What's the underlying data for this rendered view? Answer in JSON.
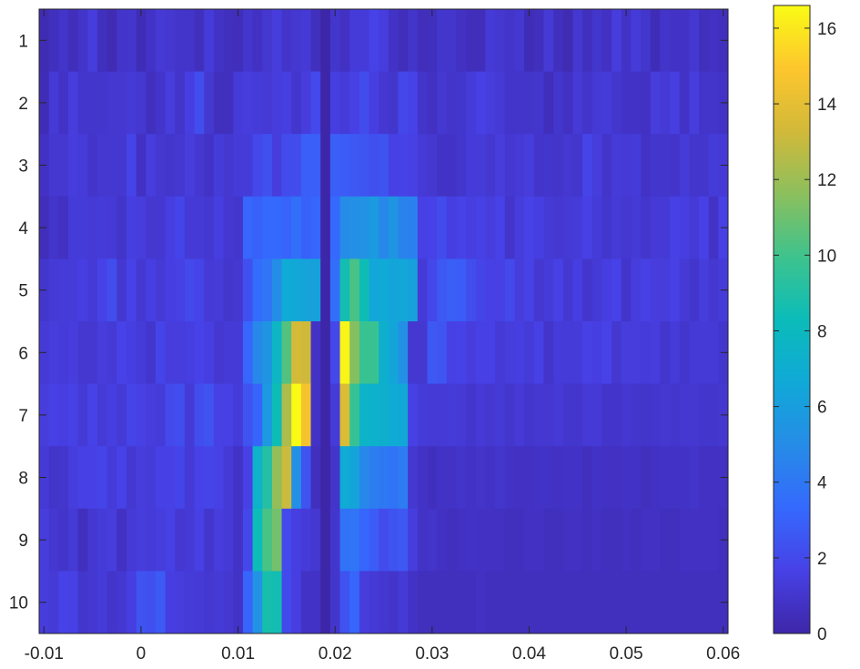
{
  "chart_data": {
    "type": "heatmap",
    "colormap": "parula",
    "x_range": [
      -0.0105,
      0.0605
    ],
    "y_range": [
      0.5,
      10.5
    ],
    "x_ticks": [
      -0.01,
      0,
      0.01,
      0.02,
      0.03,
      0.04,
      0.05,
      0.06
    ],
    "x_tick_labels": [
      "-0.01",
      "0",
      "0.01",
      "0.02",
      "0.03",
      "0.04",
      "0.05",
      "0.06"
    ],
    "y_ticks": [
      1,
      2,
      3,
      4,
      5,
      6,
      7,
      8,
      9,
      10
    ],
    "y_tick_labels": [
      "1",
      "2",
      "3",
      "4",
      "5",
      "6",
      "7",
      "8",
      "9",
      "10"
    ],
    "y_reversed": true,
    "colorbar": {
      "range": [
        0,
        16.6
      ],
      "ticks": [
        0,
        2,
        4,
        6,
        8,
        10,
        12,
        14,
        16
      ],
      "tick_labels": [
        "0",
        "2",
        "4",
        "6",
        "8",
        "10",
        "12",
        "14",
        "16"
      ],
      "position": "right"
    },
    "grid": false,
    "x_bins": [
      -0.01,
      -0.009,
      -0.008,
      -0.007,
      -0.006,
      -0.005,
      -0.004,
      -0.003,
      -0.002,
      -0.001,
      0.0,
      0.001,
      0.002,
      0.003,
      0.004,
      0.005,
      0.006,
      0.007,
      0.008,
      0.009,
      0.01,
      0.011,
      0.012,
      0.013,
      0.014,
      0.015,
      0.016,
      0.017,
      0.018,
      0.019,
      0.02,
      0.021,
      0.022,
      0.023,
      0.024,
      0.025,
      0.026,
      0.027,
      0.028,
      0.029,
      0.03,
      0.031,
      0.032,
      0.033,
      0.034,
      0.035,
      0.036,
      0.037,
      0.038,
      0.039,
      0.04,
      0.041,
      0.042,
      0.043,
      0.044,
      0.045,
      0.046,
      0.047,
      0.048,
      0.049,
      0.05,
      0.051,
      0.052,
      0.053,
      0.054,
      0.055,
      0.056,
      0.057,
      0.058,
      0.059,
      0.06
    ],
    "rows": [
      [
        0.3,
        0.6,
        0.9,
        0.5,
        0.9,
        1.4,
        0.6,
        0.3,
        0.9,
        1.0,
        0.4,
        0.8,
        1.2,
        1.1,
        0.9,
        0.9,
        0.6,
        1.3,
        0.8,
        0.6,
        0.5,
        1.0,
        0.7,
        1.1,
        1.4,
        0.9,
        1.1,
        1.2,
        0.6,
        0.0,
        1.0,
        0.7,
        1.3,
        1.3,
        1.7,
        1.4,
        0.8,
        0.5,
        0.9,
        0.5,
        0.6,
        1.0,
        1.0,
        0.7,
        0.5,
        0.5,
        1.2,
        1.1,
        0.9,
        1.1,
        0.4,
        0.6,
        1.2,
        0.6,
        0.3,
        1.1,
        0.6,
        1.0,
        0.7,
        1.4,
        0.8,
        1.3,
        1.0,
        0.4,
        0.9,
        0.8,
        0.8,
        1.1,
        0.6,
        0.7,
        0.6
      ],
      [
        0.4,
        1.2,
        0.8,
        1.4,
        1.0,
        1.0,
        1.0,
        1.1,
        1.1,
        1.2,
        1.1,
        0.6,
        0.9,
        1.4,
        0.9,
        1.5,
        2.2,
        1.1,
        0.6,
        0.6,
        1.3,
        1.4,
        1.3,
        1.2,
        1.4,
        1.5,
        1.0,
        1.4,
        2.0,
        0.0,
        1.5,
        1.3,
        1.6,
        2.1,
        1.5,
        1.1,
        1.0,
        1.9,
        1.7,
        0.9,
        0.7,
        1.1,
        0.9,
        1.0,
        1.3,
        1.6,
        1.4,
        1.2,
        0.9,
        0.9,
        0.9,
        1.0,
        0.5,
        1.0,
        0.7,
        1.2,
        0.9,
        1.2,
        1.3,
        1.0,
        0.8,
        0.8,
        0.7,
        1.4,
        1.2,
        1.5,
        0.8,
        1.4,
        0.9,
        0.9,
        0.8
      ],
      [
        0.7,
        1.1,
        1.1,
        1.4,
        1.3,
        0.9,
        1.1,
        1.1,
        1.1,
        1.8,
        0.7,
        1.4,
        1.1,
        1.0,
        1.1,
        1.4,
        1.1,
        0.8,
        1.3,
        1.1,
        1.3,
        1.3,
        1.9,
        2.3,
        1.4,
        2.1,
        2.1,
        2.9,
        2.9,
        0.0,
        2.9,
        2.8,
        2.6,
        2.5,
        2.3,
        2.4,
        1.6,
        1.7,
        1.6,
        1.2,
        1.1,
        0.8,
        0.8,
        1.0,
        1.3,
        1.3,
        1.1,
        1.4,
        1.1,
        1.2,
        1.4,
        0.9,
        1.0,
        0.9,
        1.1,
        1.0,
        1.8,
        1.4,
        0.9,
        1.3,
        1.2,
        1.3,
        0.8,
        1.0,
        1.0,
        0.9,
        1.3,
        1.0,
        1.0,
        1.3,
        1.2
      ],
      [
        0.5,
        0.9,
        0.7,
        1.3,
        1.3,
        1.2,
        1.3,
        1.2,
        0.9,
        1.5,
        1.4,
        1.1,
        1.1,
        1.5,
        1.8,
        1.2,
        1.2,
        1.1,
        1.5,
        1.1,
        1.0,
        3.2,
        3.0,
        3.3,
        3.3,
        3.1,
        3.6,
        3.0,
        3.2,
        0.0,
        3.3,
        5.0,
        5.2,
        5.3,
        5.8,
        4.8,
        5.5,
        4.5,
        4.4,
        1.6,
        1.7,
        2.1,
        1.5,
        1.7,
        1.5,
        1.6,
        1.4,
        1.7,
        0.9,
        1.4,
        1.7,
        1.5,
        1.2,
        1.1,
        1.2,
        1.3,
        1.6,
        1.3,
        1.0,
        1.2,
        1.1,
        1.2,
        1.0,
        1.2,
        1.2,
        1.6,
        1.5,
        1.2,
        1.6,
        0.8,
        1.6
      ],
      [
        1.0,
        1.2,
        1.3,
        1.3,
        1.5,
        1.2,
        1.7,
        2.2,
        1.1,
        1.7,
        1.1,
        1.5,
        1.2,
        1.5,
        1.6,
        2.0,
        1.8,
        1.2,
        1.3,
        1.0,
        1.1,
        2.3,
        3.5,
        3.9,
        5.1,
        6.8,
        6.6,
        6.3,
        6.2,
        0.0,
        3.6,
        8.6,
        10.2,
        8.4,
        6.5,
        6.7,
        6.4,
        6.5,
        6.1,
        1.2,
        1.9,
        2.6,
        2.9,
        2.8,
        2.2,
        1.8,
        1.6,
        1.6,
        2.0,
        1.4,
        1.7,
        1.1,
        1.3,
        1.6,
        1.1,
        1.5,
        1.0,
        1.2,
        1.5,
        1.7,
        0.9,
        1.4,
        1.6,
        1.4,
        1.4,
        1.6,
        1.2,
        1.0,
        1.4,
        1.1,
        1.3
      ],
      [
        1.2,
        1.4,
        1.3,
        1.4,
        1.1,
        1.1,
        1.4,
        1.2,
        1.7,
        1.5,
        1.3,
        1.0,
        1.8,
        1.4,
        1.4,
        1.5,
        1.7,
        1.5,
        1.1,
        1.2,
        1.2,
        3.2,
        4.8,
        5.5,
        7.8,
        10.4,
        13.4,
        13.2,
        0.8,
        0.0,
        1.9,
        16.4,
        11.5,
        9.8,
        9.8,
        7.2,
        6.4,
        5.2,
        1.1,
        1.1,
        2.6,
        2.5,
        1.6,
        1.7,
        1.4,
        1.6,
        1.6,
        1.2,
        1.4,
        1.5,
        1.3,
        1.6,
        0.9,
        1.3,
        1.3,
        1.3,
        1.6,
        1.5,
        1.7,
        1.1,
        1.4,
        1.4,
        1.3,
        1.4,
        1.0,
        1.3,
        1.0,
        1.2,
        1.2,
        1.2,
        1.0
      ],
      [
        1.4,
        1.6,
        1.5,
        1.6,
        1.2,
        1.7,
        1.2,
        1.5,
        1.2,
        1.8,
        1.6,
        1.4,
        1.3,
        2.0,
        2.2,
        1.2,
        2.2,
        2.4,
        1.6,
        1.6,
        1.3,
        2.4,
        3.1,
        5.7,
        8.4,
        12.4,
        16.6,
        14.6,
        0.8,
        0.0,
        1.3,
        13.6,
        9.7,
        7.5,
        7.3,
        7.2,
        6.8,
        6.6,
        1.6,
        1.3,
        1.2,
        1.2,
        1.3,
        1.2,
        1.0,
        1.2,
        1.1,
        1.2,
        1.0,
        1.2,
        1.0,
        1.1,
        1.1,
        1.2,
        1.0,
        1.0,
        1.2,
        1.2,
        0.9,
        0.9,
        1.1,
        1.0,
        0.9,
        1.0,
        1.1,
        1.0,
        1.1,
        1.1,
        1.0,
        1.0,
        1.1
      ],
      [
        1.2,
        0.9,
        1.0,
        1.4,
        1.6,
        1.6,
        1.8,
        1.3,
        1.7,
        1.1,
        1.4,
        1.3,
        1.6,
        1.6,
        1.8,
        1.2,
        1.7,
        1.8,
        1.6,
        1.2,
        0.8,
        1.6,
        7.4,
        9.1,
        11.8,
        13.1,
        5.2,
        2.4,
        0.6,
        0.0,
        0.9,
        6.8,
        6.4,
        4.8,
        4.3,
        4.1,
        3.8,
        4.2,
        1.1,
        0.8,
        0.6,
        0.8,
        0.8,
        0.9,
        0.8,
        0.9,
        0.8,
        1.0,
        0.8,
        0.7,
        0.7,
        0.8,
        0.8,
        0.7,
        0.8,
        0.8,
        0.6,
        0.8,
        0.7,
        0.7,
        0.8,
        0.8,
        0.6,
        0.7,
        0.8,
        0.8,
        0.8,
        0.9,
        0.7,
        0.7,
        0.7
      ],
      [
        1.4,
        1.1,
        0.9,
        1.2,
        0.6,
        1.1,
        1.3,
        1.4,
        0.7,
        1.2,
        1.4,
        1.3,
        1.4,
        1.6,
        1.1,
        1.2,
        1.6,
        1.0,
        1.4,
        1.2,
        0.8,
        1.9,
        8.3,
        10.2,
        11.1,
        2.0,
        1.5,
        1.3,
        1.1,
        0.0,
        1.0,
        3.8,
        3.9,
        3.2,
        2.8,
        2.1,
        2.4,
        2.6,
        1.4,
        0.8,
        0.9,
        0.7,
        0.6,
        0.7,
        0.8,
        0.7,
        0.7,
        0.7,
        0.6,
        0.6,
        0.7,
        0.7,
        0.6,
        0.6,
        0.7,
        0.7,
        0.6,
        0.7,
        0.6,
        0.6,
        0.7,
        0.6,
        0.7,
        0.7,
        0.6,
        0.6,
        0.7,
        0.7,
        0.7,
        0.7,
        0.6
      ],
      [
        1.4,
        1.2,
        1.7,
        1.6,
        1.0,
        1.1,
        1.3,
        0.9,
        1.1,
        1.5,
        2.4,
        2.3,
        2.7,
        1.5,
        1.4,
        1.3,
        1.2,
        1.1,
        1.2,
        1.1,
        0.8,
        3.1,
        5.3,
        8.7,
        8.6,
        2.0,
        1.5,
        0.8,
        0.8,
        0.0,
        1.0,
        2.4,
        3.2,
        1.4,
        1.2,
        1.1,
        0.9,
        1.2,
        0.8,
        0.6,
        0.6,
        0.6,
        0.6,
        0.6,
        0.6,
        0.7,
        0.6,
        0.6,
        0.6,
        0.6,
        0.6,
        0.6,
        0.6,
        0.6,
        0.6,
        0.6,
        0.6,
        0.6,
        0.6,
        0.6,
        0.6,
        0.6,
        0.6,
        0.6,
        0.6,
        0.6,
        0.6,
        0.6,
        0.6,
        0.6,
        0.6
      ]
    ]
  }
}
